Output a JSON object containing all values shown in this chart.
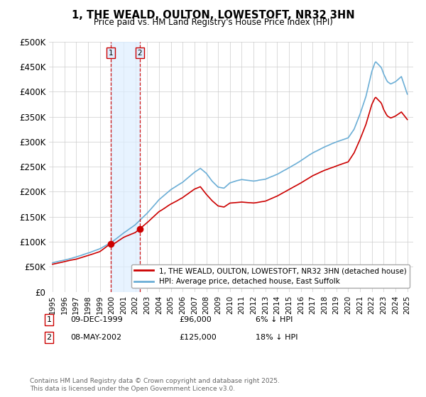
{
  "title": "1, THE WEALD, OULTON, LOWESTOFT, NR32 3HN",
  "subtitle": "Price paid vs. HM Land Registry's House Price Index (HPI)",
  "ylim": [
    0,
    500000
  ],
  "yticks": [
    0,
    50000,
    100000,
    150000,
    200000,
    250000,
    300000,
    350000,
    400000,
    450000,
    500000
  ],
  "ytick_labels": [
    "£0",
    "£50K",
    "£100K",
    "£150K",
    "£200K",
    "£250K",
    "£300K",
    "£350K",
    "£400K",
    "£450K",
    "£500K"
  ],
  "hpi_color": "#6baed6",
  "price_color": "#cc0000",
  "shaded_color": "#ddeeff",
  "background_color": "#ffffff",
  "grid_color": "#cccccc",
  "legend_label_price": "1, THE WEALD, OULTON, LOWESTOFT, NR32 3HN (detached house)",
  "legend_label_hpi": "HPI: Average price, detached house, East Suffolk",
  "annotation_1": [
    "1",
    "09-DEC-1999",
    "£96,000",
    "6% ↓ HPI"
  ],
  "annotation_2": [
    "2",
    "08-MAY-2002",
    "£125,000",
    "18% ↓ HPI"
  ],
  "footnote": "Contains HM Land Registry data © Crown copyright and database right 2025.\nThis data is licensed under the Open Government Licence v3.0.",
  "marker1_x": 1999.92,
  "marker1_y": 96000,
  "marker2_x": 2002.36,
  "marker2_y": 125000,
  "vline1_x": 1999.92,
  "vline2_x": 2002.36,
  "xlim": [
    1994.7,
    2025.5
  ]
}
